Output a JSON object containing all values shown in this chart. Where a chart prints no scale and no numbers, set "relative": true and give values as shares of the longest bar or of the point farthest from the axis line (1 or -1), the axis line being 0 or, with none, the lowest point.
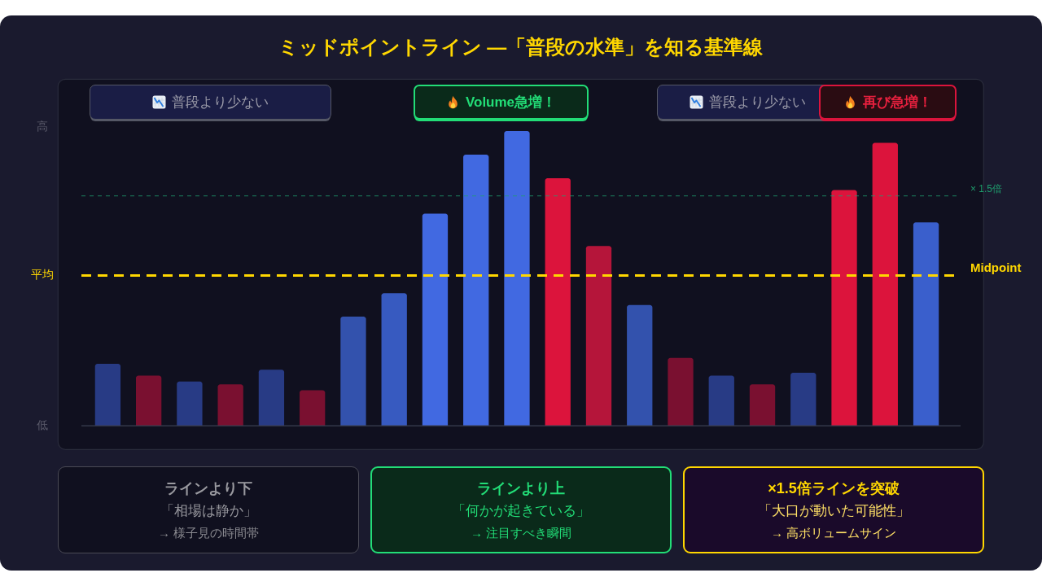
{
  "chart_data": {
    "type": "bar",
    "title": "ミッドポイントライン —「普段の水準」を知る基準線",
    "relative": true,
    "categories": [
      null,
      null,
      null,
      null,
      null,
      null,
      null,
      null,
      null,
      null,
      null,
      null,
      null,
      null,
      null,
      null,
      null,
      null,
      null,
      null,
      null
    ],
    "values": [
      0.21,
      0.17,
      0.15,
      0.14,
      0.19,
      0.12,
      0.37,
      0.45,
      0.72,
      0.92,
      1,
      0.84,
      0.61,
      0.41,
      0.23,
      0.17,
      0.14,
      0.18,
      0.8,
      0.96,
      0.69
    ],
    "colors": [
      "#283b85",
      "#7a1030",
      "#283b85",
      "#7a1030",
      "#283b85",
      "#7a1030",
      "#3352ad",
      "#375ac0",
      "#4169e1",
      "#4169e1",
      "#4169e1",
      "#dc143c",
      "#b5153a",
      "#3352ad",
      "#7a1030",
      "#283b85",
      "#7a1030",
      "#283b85",
      "#dc143c",
      "#dc143c",
      "#3a5fcc"
    ],
    "ref_lines": [
      {
        "axis": "y",
        "value": 0.51,
        "label": "Midpoint",
        "color": "#ffd700",
        "line_style": "dashed"
      },
      {
        "axis": "y",
        "value": 0.78,
        "label": "× 1.5倍",
        "color": "#1f9e6e",
        "line_style": "dashed"
      }
    ],
    "annotations": [
      "高",
      "平均",
      "低",
      "普段より少ない",
      "Volume急増！",
      "普段より少ない",
      "再び急増！",
      "ラインより下",
      "「相場は静か」",
      "→ 様子見の時間帯",
      "ラインより上",
      "「何かが起きている」",
      "→ 注目すべき瞬間",
      "×1.5倍ラインを突破",
      "「大口が動いた可能性」",
      "→ 高ボリュームサイン"
    ]
  }
}
